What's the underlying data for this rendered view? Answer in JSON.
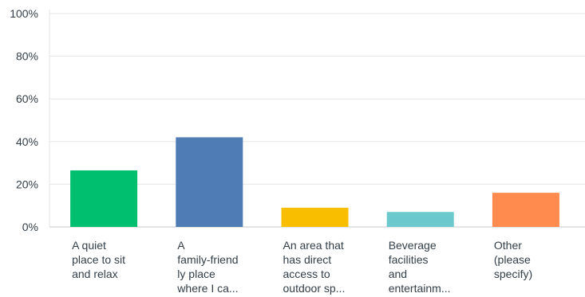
{
  "chart_data": {
    "type": "bar",
    "categories": [
      "A quiet place to sit and relax",
      "A family-friendly place where I ca...",
      "An area that has direct access to outdoor sp...",
      "Beverage facilities and entertainm...",
      "Other (please specify)"
    ],
    "category_labels_display": [
      "A quiet\nplace to sit\nand relax",
      "A\nfamily-friend\nly place\nwhere I ca...",
      "An area that\nhas direct\naccess to\noutdoor sp...",
      "Beverage\nfacilities\nand\nentertainm...",
      "Other\n(please\nspecify)"
    ],
    "values": [
      26.5,
      42,
      9,
      7,
      16
    ],
    "colors": [
      "#00bf6f",
      "#507cb6",
      "#f9be00",
      "#6bc8cd",
      "#ff8b4f"
    ],
    "yticks": [
      "0%",
      "20%",
      "40%",
      "60%",
      "80%",
      "100%"
    ],
    "ylim": [
      0,
      100
    ],
    "grid": true,
    "title": "",
    "xlabel": "",
    "ylabel": ""
  }
}
